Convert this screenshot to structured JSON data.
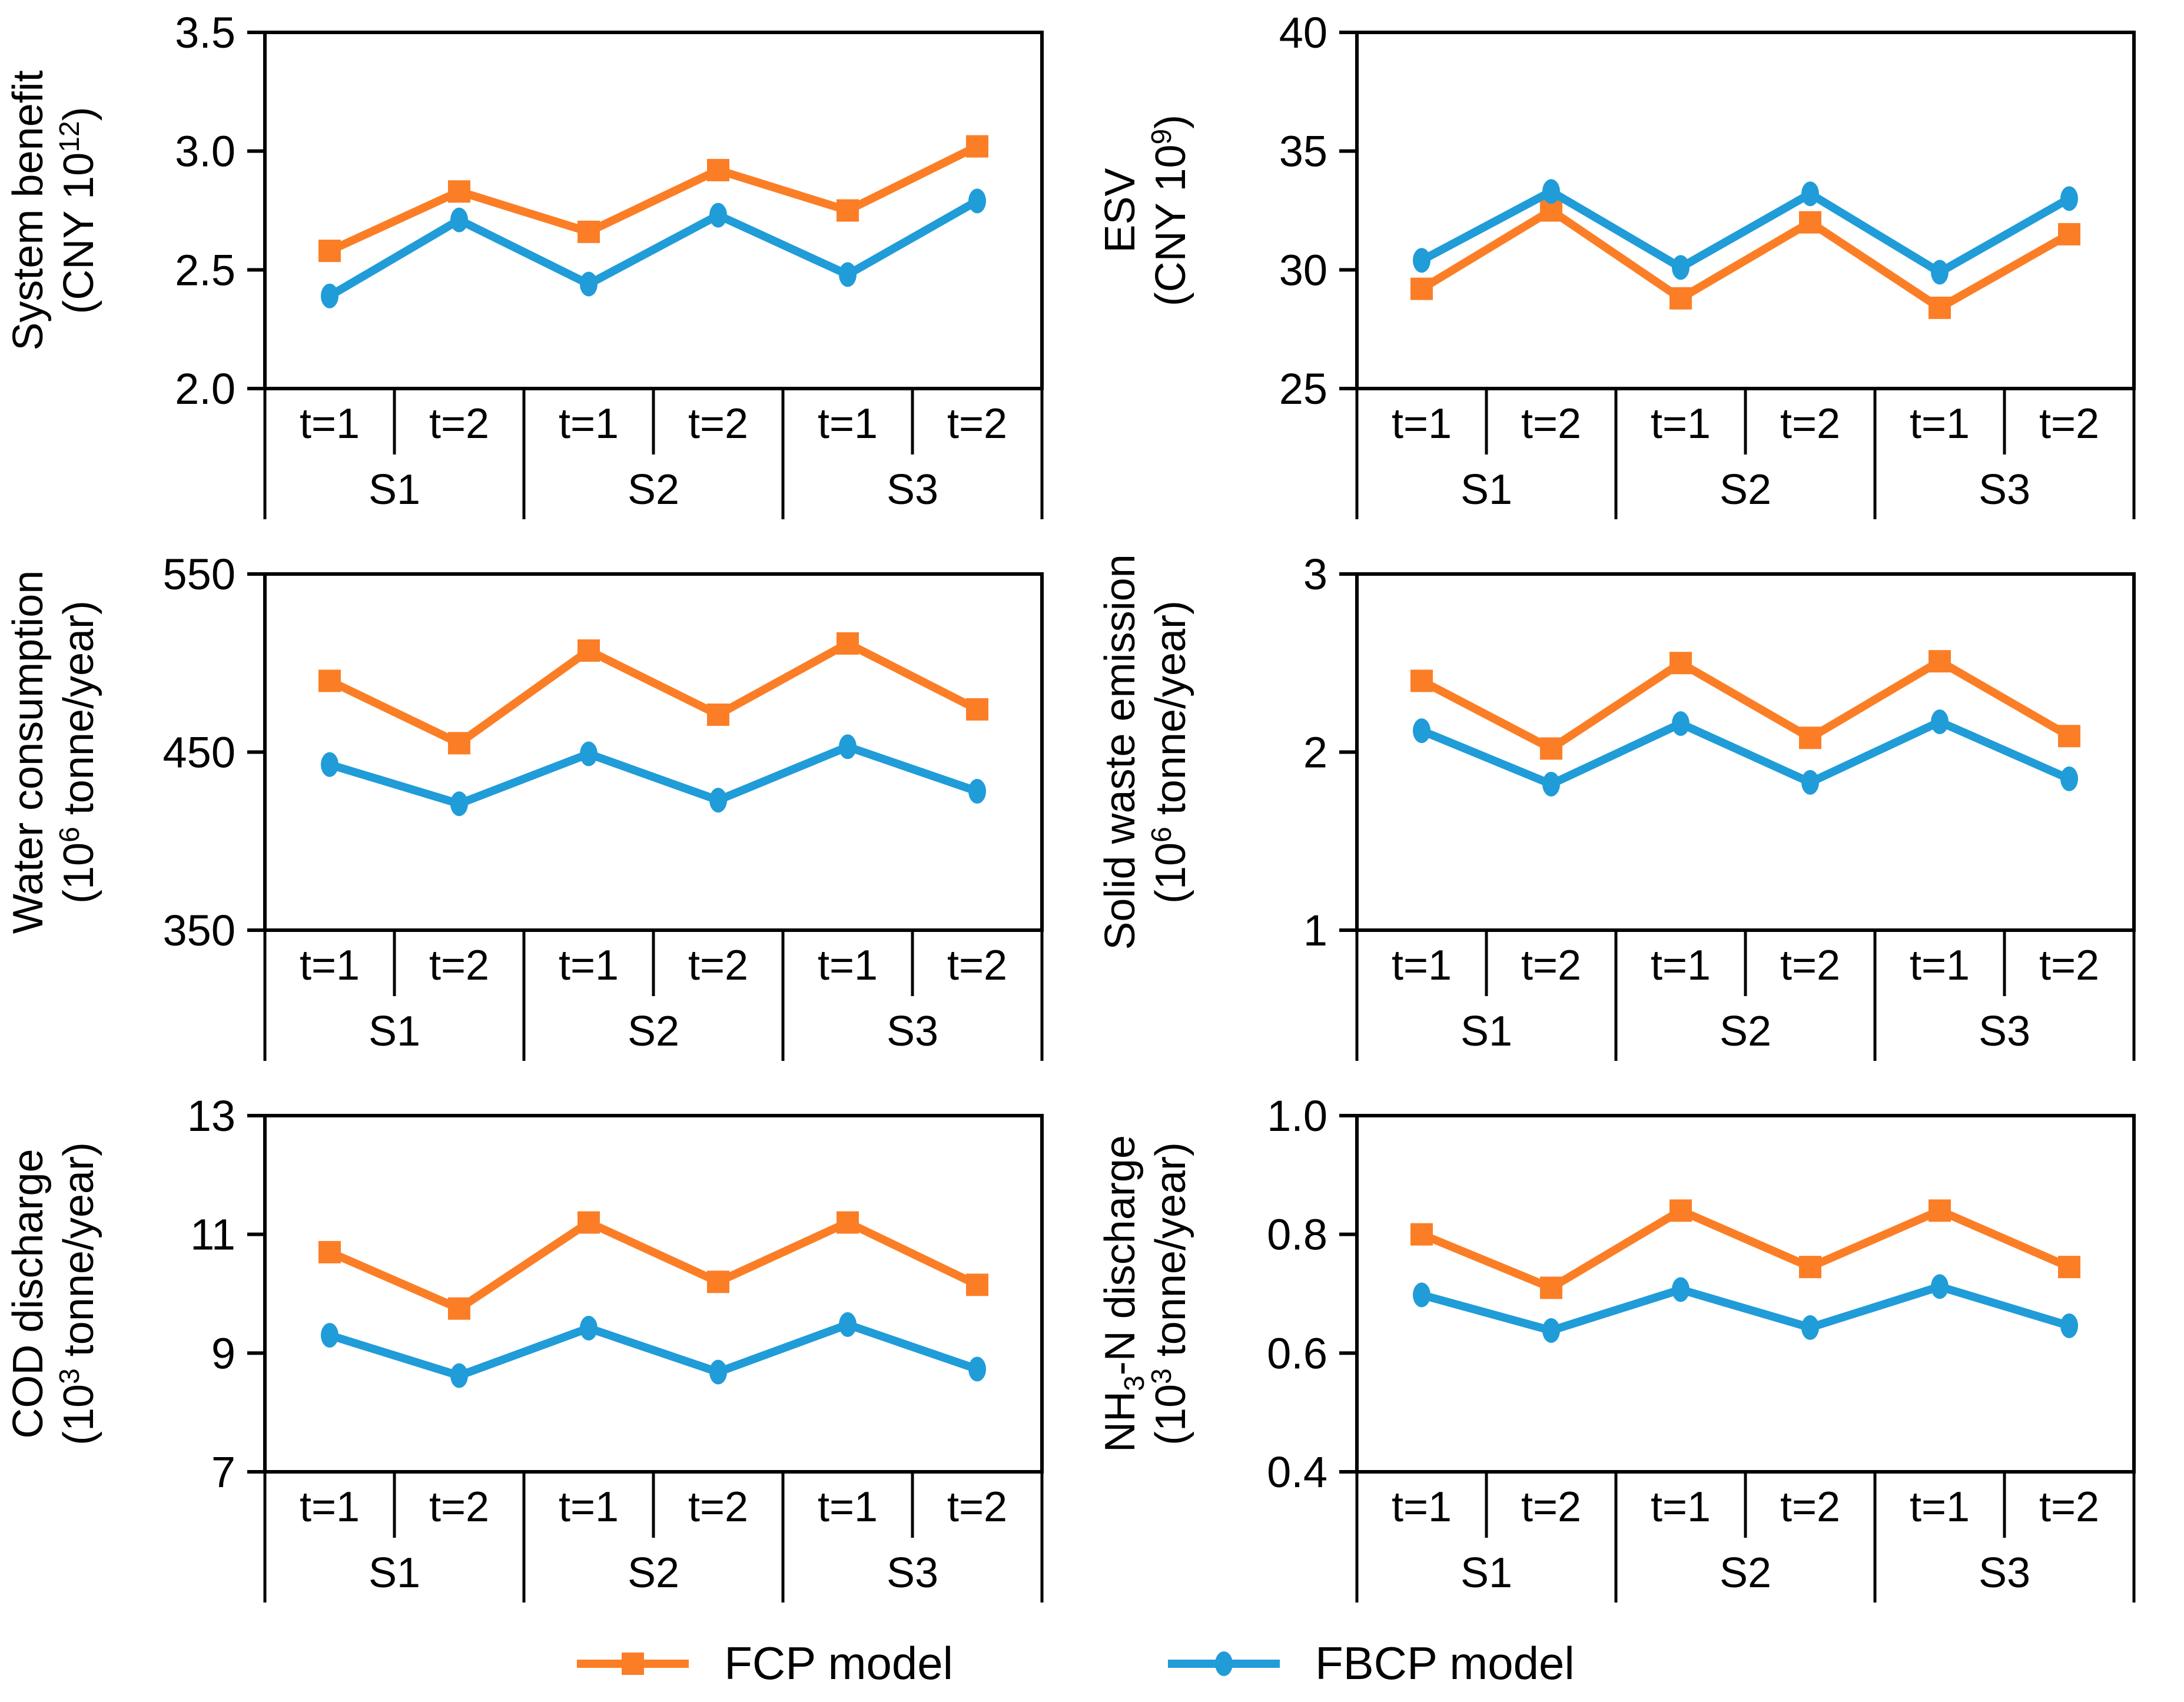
{
  "colors": {
    "fcp": "#FB7E26",
    "fbcp": "#209CD8",
    "axis": "#000000",
    "background": "#FFFFFF"
  },
  "legend": {
    "items": [
      {
        "label": "FCP model",
        "series": "fcp",
        "marker": "square"
      },
      {
        "label": "FBCP model",
        "series": "fbcp",
        "marker": "circle"
      }
    ]
  },
  "x_axis": {
    "t_labels": [
      "t=1",
      "t=2",
      "t=1",
      "t=2",
      "t=1",
      "t=2"
    ],
    "s_labels": [
      "S1",
      "S2",
      "S3"
    ]
  },
  "chart_data": [
    {
      "type": "line",
      "position": "top-left",
      "title": "System benefit (CNY 10^12)",
      "ylabel_lines": [
        [
          {
            "t": "System benefit"
          }
        ],
        [
          {
            "t": "(CNY 10"
          },
          {
            "t": "12",
            "sup": true
          },
          {
            "t": ")"
          }
        ]
      ],
      "ylim": [
        2.0,
        3.5
      ],
      "yticks": [
        {
          "v": 2.0,
          "label": "2.0"
        },
        {
          "v": 2.5,
          "label": "2.5"
        },
        {
          "v": 3.0,
          "label": "3.0"
        },
        {
          "v": 3.5,
          "label": "3.5"
        }
      ],
      "categories": [
        "S1 t=1",
        "S1 t=2",
        "S2 t=1",
        "S2 t=2",
        "S3 t=1",
        "S3 t=2"
      ],
      "series": [
        {
          "name": "FCP model",
          "key": "fcp",
          "marker": "square",
          "values": [
            2.58,
            2.83,
            2.66,
            2.92,
            2.75,
            3.02
          ]
        },
        {
          "name": "FBCP model",
          "key": "fbcp",
          "marker": "circle",
          "values": [
            2.39,
            2.71,
            2.44,
            2.73,
            2.48,
            2.79
          ]
        }
      ]
    },
    {
      "type": "line",
      "position": "top-right",
      "title": "ESV (CNY 10^9)",
      "ylabel_lines": [
        [
          {
            "t": "ESV"
          }
        ],
        [
          {
            "t": "(CNY 10"
          },
          {
            "t": "9",
            "sup": true
          },
          {
            "t": ")"
          }
        ]
      ],
      "ylim": [
        25,
        40
      ],
      "yticks": [
        {
          "v": 25,
          "label": "25"
        },
        {
          "v": 30,
          "label": "30"
        },
        {
          "v": 35,
          "label": "35"
        },
        {
          "v": 40,
          "label": "40"
        }
      ],
      "categories": [
        "S1 t=1",
        "S1 t=2",
        "S2 t=1",
        "S2 t=2",
        "S3 t=1",
        "S3 t=2"
      ],
      "series": [
        {
          "name": "FCP model",
          "key": "fcp",
          "marker": "square",
          "values": [
            29.2,
            32.5,
            28.8,
            32.0,
            28.4,
            31.5
          ]
        },
        {
          "name": "FBCP model",
          "key": "fbcp",
          "marker": "circle",
          "values": [
            30.4,
            33.3,
            30.1,
            33.2,
            29.9,
            33.0
          ]
        }
      ]
    },
    {
      "type": "line",
      "position": "middle-left",
      "title": "Water consumption (10^6 tonne/year)",
      "ylabel_lines": [
        [
          {
            "t": "Water consumption"
          }
        ],
        [
          {
            "t": "(10"
          },
          {
            "t": "6",
            "sup": true
          },
          {
            "t": " tonne/year)"
          }
        ]
      ],
      "ylim": [
        350,
        550
      ],
      "yticks": [
        {
          "v": 350,
          "label": "350"
        },
        {
          "v": 450,
          "label": "450"
        },
        {
          "v": 550,
          "label": "550"
        }
      ],
      "categories": [
        "S1 t=1",
        "S1 t=2",
        "S2 t=1",
        "S2 t=2",
        "S3 t=1",
        "S3 t=2"
      ],
      "series": [
        {
          "name": "FCP model",
          "key": "fcp",
          "marker": "square",
          "values": [
            490,
            455,
            507,
            471,
            511,
            474
          ]
        },
        {
          "name": "FBCP model",
          "key": "fbcp",
          "marker": "circle",
          "values": [
            443,
            421,
            449,
            423,
            453,
            428
          ]
        }
      ]
    },
    {
      "type": "line",
      "position": "middle-right",
      "title": "Solid waste emission (10^6 tonne/year)",
      "ylabel_lines": [
        [
          {
            "t": "Solid waste emission"
          }
        ],
        [
          {
            "t": "(10"
          },
          {
            "t": "6",
            "sup": true
          },
          {
            "t": " tonne/year)"
          }
        ]
      ],
      "ylim": [
        1,
        3
      ],
      "yticks": [
        {
          "v": 1,
          "label": "1"
        },
        {
          "v": 2,
          "label": "2"
        },
        {
          "v": 3,
          "label": "3"
        }
      ],
      "categories": [
        "S1 t=1",
        "S1 t=2",
        "S2 t=1",
        "S2 t=2",
        "S3 t=1",
        "S3 t=2"
      ],
      "series": [
        {
          "name": "FCP model",
          "key": "fcp",
          "marker": "square",
          "values": [
            2.4,
            2.02,
            2.5,
            2.08,
            2.51,
            2.09
          ]
        },
        {
          "name": "FBCP model",
          "key": "fbcp",
          "marker": "circle",
          "values": [
            2.12,
            1.82,
            2.16,
            1.83,
            2.17,
            1.85
          ]
        }
      ]
    },
    {
      "type": "line",
      "position": "bottom-left",
      "title": "COD discharge (10^3 tonne/year)",
      "ylabel_lines": [
        [
          {
            "t": "COD discharge"
          }
        ],
        [
          {
            "t": "(10"
          },
          {
            "t": "3",
            "sup": true
          },
          {
            "t": " tonne/year)"
          }
        ]
      ],
      "ylim": [
        7,
        13
      ],
      "yticks": [
        {
          "v": 7,
          "label": "7"
        },
        {
          "v": 9,
          "label": "9"
        },
        {
          "v": 11,
          "label": "11"
        },
        {
          "v": 13,
          "label": "13"
        }
      ],
      "categories": [
        "S1 t=1",
        "S1 t=2",
        "S2 t=1",
        "S2 t=2",
        "S3 t=1",
        "S3 t=2"
      ],
      "series": [
        {
          "name": "FCP model",
          "key": "fcp",
          "marker": "square",
          "values": [
            10.7,
            9.75,
            11.2,
            10.2,
            11.2,
            10.15
          ]
        },
        {
          "name": "FBCP model",
          "key": "fbcp",
          "marker": "circle",
          "values": [
            9.3,
            8.62,
            9.42,
            8.68,
            9.48,
            8.73
          ]
        }
      ]
    },
    {
      "type": "line",
      "position": "bottom-right",
      "title": "NH3-N discharge (10^3 tonne/year)",
      "ylabel_lines": [
        [
          {
            "t": "NH"
          },
          {
            "t": "3",
            "sub": true
          },
          {
            "t": "-N discharge"
          }
        ],
        [
          {
            "t": "(10"
          },
          {
            "t": "3",
            "sup": true
          },
          {
            "t": " tonne/year)"
          }
        ]
      ],
      "ylim": [
        0.4,
        1.0
      ],
      "yticks": [
        {
          "v": 0.4,
          "label": "0.4"
        },
        {
          "v": 0.6,
          "label": "0.6"
        },
        {
          "v": 0.8,
          "label": "0.8"
        },
        {
          "v": 1.0,
          "label": "1.0"
        }
      ],
      "categories": [
        "S1 t=1",
        "S1 t=2",
        "S2 t=1",
        "S2 t=2",
        "S3 t=1",
        "S3 t=2"
      ],
      "series": [
        {
          "name": "FCP model",
          "key": "fcp",
          "marker": "square",
          "values": [
            0.8,
            0.71,
            0.84,
            0.745,
            0.84,
            0.745
          ]
        },
        {
          "name": "FBCP model",
          "key": "fbcp",
          "marker": "circle",
          "values": [
            0.698,
            0.638,
            0.707,
            0.643,
            0.712,
            0.646
          ]
        }
      ]
    }
  ]
}
